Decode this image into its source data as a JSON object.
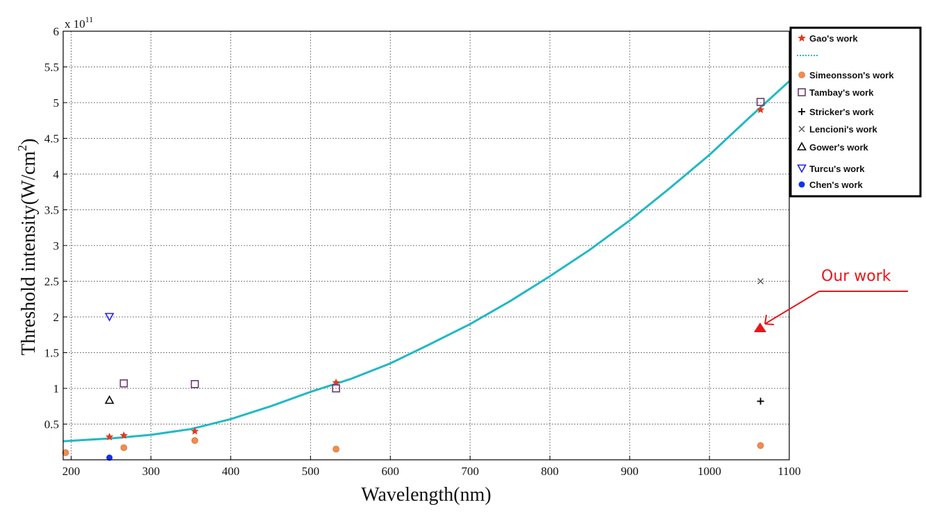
{
  "chart_data": {
    "type": "scatter",
    "xlabel": "Wavelength(nm)",
    "ylabel": "Threshold intensity(W/cm²)",
    "ylabel_main": "Threshold intensity(W/cm",
    "ylabel_sup": "2",
    "ylabel_close": ")",
    "y_multiplier_base": "x 10",
    "y_multiplier_exp": "11",
    "xlim": [
      190,
      1100
    ],
    "ylim": [
      0,
      6
    ],
    "x_ticks": [
      200,
      300,
      400,
      500,
      600,
      700,
      800,
      900,
      1000,
      1100
    ],
    "y_ticks": [
      0.5,
      1,
      1.5,
      2,
      2.5,
      3,
      3.5,
      4,
      4.5,
      5,
      5.5,
      6
    ],
    "y_tick_labels": [
      "0.5",
      "1",
      "1.5",
      "2",
      "2.5",
      "3",
      "3.5",
      "4",
      "4.5",
      "5",
      "5.5",
      "6"
    ],
    "grid": true,
    "legend_position": "top-right",
    "fit_curve": {
      "name": "",
      "color": "#22b8c4",
      "x": [
        190,
        250,
        300,
        350,
        400,
        450,
        500,
        550,
        600,
        650,
        700,
        750,
        800,
        850,
        900,
        950,
        1000,
        1050,
        1100
      ],
      "y": [
        0.26,
        0.3,
        0.35,
        0.43,
        0.57,
        0.75,
        0.95,
        1.13,
        1.35,
        1.62,
        1.9,
        2.22,
        2.57,
        2.94,
        3.35,
        3.8,
        4.27,
        4.79,
        5.3
      ]
    },
    "series": [
      {
        "name": "Gao's work",
        "marker": "star",
        "color": "#e03a1e",
        "x": [
          248,
          266,
          355,
          532,
          1064
        ],
        "y": [
          0.32,
          0.34,
          0.4,
          1.08,
          4.9
        ]
      },
      {
        "name": "Simeonsson's work",
        "marker": "circle",
        "color": "#f28c4e",
        "x": [
          193,
          266,
          355,
          532,
          1064
        ],
        "y": [
          0.1,
          0.17,
          0.27,
          0.15,
          0.2
        ]
      },
      {
        "name": "Tambay's work",
        "marker": "square",
        "color": "#6b3a6b",
        "x": [
          266,
          355,
          532,
          1064
        ],
        "y": [
          1.07,
          1.06,
          1.0,
          5.01
        ]
      },
      {
        "name": "Stricker's work",
        "marker": "plus",
        "color": "#000000",
        "x": [
          1064
        ],
        "y": [
          0.82
        ]
      },
      {
        "name": "Lencioni's work",
        "marker": "cross",
        "color": "#555555",
        "x": [
          1064
        ],
        "y": [
          2.5
        ]
      },
      {
        "name": "Gower's work",
        "marker": "triangle-up",
        "color": "#000000",
        "x": [
          248
        ],
        "y": [
          0.83
        ]
      },
      {
        "name": "Turcu's work",
        "marker": "triangle-down",
        "color": "#2222ee",
        "x": [
          248
        ],
        "y": [
          2.0
        ]
      },
      {
        "name": "Chen's work",
        "marker": "filled-circle",
        "color": "#1133ee",
        "x": [
          248
        ],
        "y": [
          0.03
        ]
      }
    ],
    "annotation": {
      "text": "Our work",
      "color": "#e8161b"
    }
  }
}
